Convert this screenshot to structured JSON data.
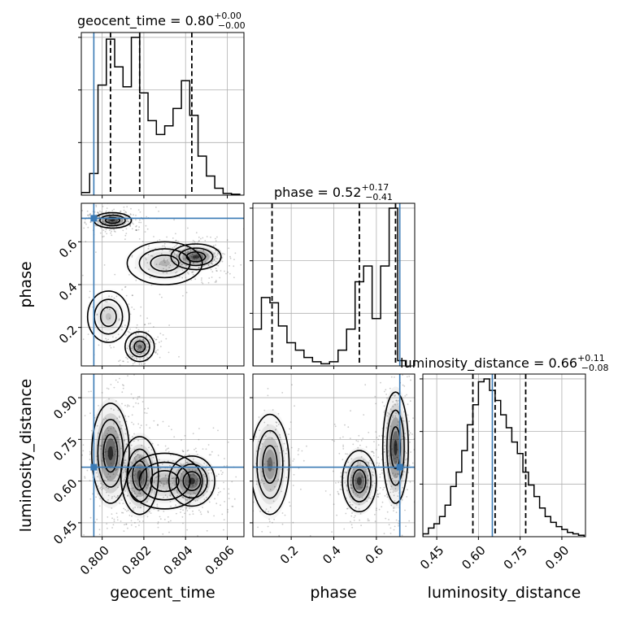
{
  "chart_data": {
    "type": "corner",
    "parameters": [
      "geocent_time",
      "phase",
      "luminosity_distance"
    ],
    "truth_values": {
      "geocent_time": 0.7996,
      "phase": 0.71,
      "luminosity_distance": 0.65
    },
    "titles": [
      {
        "param": "geocent_time",
        "prefix": "geocent_time = 0.80",
        "plus": "+0.00",
        "minus": "−0.00"
      },
      {
        "param": "phase",
        "prefix": "phase = 0.52",
        "plus": "+0.17",
        "minus": "−0.41"
      },
      {
        "param": "luminosity_distance",
        "prefix": "luminosity_distance = 0.66",
        "plus": "+0.11",
        "minus": "−0.08"
      }
    ],
    "axes": {
      "geocent_time": {
        "range": [
          0.799,
          0.8068
        ],
        "ticks": [
          0.8,
          0.802,
          0.804,
          0.806
        ],
        "tick_labels": [
          "0.800",
          "0.802",
          "0.804",
          "0.806"
        ]
      },
      "phase": {
        "range": [
          0.02,
          0.78
        ],
        "ticks": [
          0.2,
          0.4,
          0.6
        ],
        "tick_labels": [
          "0.2",
          "0.4",
          "0.6"
        ]
      },
      "luminosity_distance": {
        "range": [
          0.4,
          0.985
        ],
        "ticks": [
          0.45,
          0.6,
          0.75,
          0.9
        ],
        "tick_labels": [
          "0.45",
          "0.60",
          "0.75",
          "0.90"
        ]
      }
    },
    "histograms": {
      "geocent_time": {
        "bin_edges": [
          0.799,
          0.7994,
          0.7998,
          0.8002,
          0.8006,
          0.801,
          0.8014,
          0.8018,
          0.8022,
          0.8026,
          0.803,
          0.8034,
          0.8038,
          0.8042,
          0.8046,
          0.805,
          0.8054,
          0.8058,
          0.8062,
          0.8066
        ],
        "counts": [
          3,
          25,
          127,
          180,
          148,
          125,
          182,
          118,
          86,
          70,
          80,
          100,
          132,
          92,
          45,
          22,
          8,
          2,
          1
        ],
        "quantiles": [
          0.8004,
          0.8018,
          0.8043
        ]
      },
      "phase": {
        "bin_edges": [
          0.02,
          0.06,
          0.1,
          0.14,
          0.18,
          0.22,
          0.26,
          0.3,
          0.34,
          0.38,
          0.42,
          0.46,
          0.5,
          0.54,
          0.58,
          0.62,
          0.66,
          0.7,
          0.74
        ],
        "counts": [
          35,
          65,
          60,
          38,
          22,
          15,
          8,
          4,
          2,
          4,
          15,
          35,
          80,
          95,
          45,
          95,
          150,
          5
        ],
        "quantiles": [
          0.11,
          0.52,
          0.69
        ]
      },
      "luminosity_distance": {
        "bin_edges": [
          0.4,
          0.42,
          0.44,
          0.46,
          0.48,
          0.5,
          0.52,
          0.54,
          0.56,
          0.58,
          0.6,
          0.62,
          0.64,
          0.66,
          0.68,
          0.7,
          0.72,
          0.74,
          0.76,
          0.78,
          0.8,
          0.82,
          0.84,
          0.86,
          0.88,
          0.9,
          0.92,
          0.94,
          0.96,
          0.98
        ],
        "counts": [
          2,
          6,
          9,
          14,
          22,
          35,
          45,
          60,
          78,
          92,
          108,
          110,
          102,
          95,
          85,
          76,
          66,
          58,
          45,
          36,
          28,
          20,
          14,
          10,
          7,
          5,
          3,
          2,
          1
        ],
        "quantiles": [
          0.58,
          0.66,
          0.77
        ]
      }
    },
    "density_blobs": {
      "phase_vs_geocent_time": [
        {
          "x": 0.8005,
          "y": 0.7,
          "sx": 0.00045,
          "sy": 0.018,
          "w": 1.0
        },
        {
          "x": 0.8045,
          "y": 0.53,
          "sx": 0.0006,
          "sy": 0.03,
          "w": 0.9
        },
        {
          "x": 0.8018,
          "y": 0.11,
          "sx": 0.00035,
          "sy": 0.035,
          "w": 0.6
        },
        {
          "x": 0.803,
          "y": 0.5,
          "sx": 0.0009,
          "sy": 0.05,
          "w": 0.25
        },
        {
          "x": 0.8003,
          "y": 0.25,
          "sx": 0.0005,
          "sy": 0.06,
          "w": 0.2
        }
      ],
      "luminosity_distance_vs_geocent_time": [
        {
          "x": 0.8004,
          "y": 0.7,
          "sx": 0.00045,
          "sy": 0.09,
          "w": 1.0
        },
        {
          "x": 0.8018,
          "y": 0.62,
          "sx": 0.00045,
          "sy": 0.07,
          "w": 0.8
        },
        {
          "x": 0.8043,
          "y": 0.6,
          "sx": 0.00055,
          "sy": 0.045,
          "w": 0.9
        },
        {
          "x": 0.803,
          "y": 0.6,
          "sx": 0.0009,
          "sy": 0.05,
          "w": 0.3
        }
      ],
      "luminosity_distance_vs_phase": [
        {
          "x": 0.1,
          "y": 0.66,
          "sx": 0.045,
          "sy": 0.09,
          "w": 0.6
        },
        {
          "x": 0.52,
          "y": 0.6,
          "sx": 0.04,
          "sy": 0.055,
          "w": 0.9
        },
        {
          "x": 0.69,
          "y": 0.72,
          "sx": 0.03,
          "sy": 0.1,
          "w": 1.0
        }
      ]
    }
  }
}
